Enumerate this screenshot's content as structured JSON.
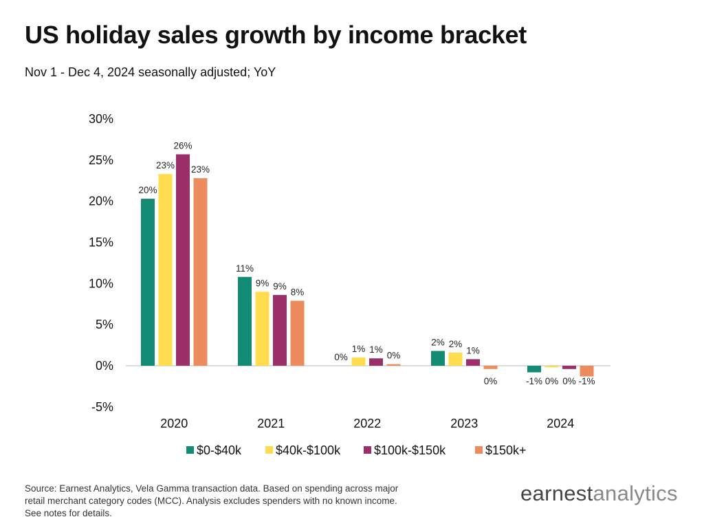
{
  "title": "US holiday sales growth by income bracket",
  "subtitle": "Nov 1 - Dec 4, 2024 seasonally adjusted; YoY",
  "footer": {
    "source": "Source: Earnest Analytics, Vela Gamma transaction data. Based on spending across major retail merchant category codes (MCC). Analysis excludes spenders with no known income. See notes for details."
  },
  "brand": {
    "part1": "earnest",
    "part2": "analytics"
  },
  "chart_data": {
    "type": "bar",
    "categories": [
      "2020",
      "2021",
      "2022",
      "2023",
      "2024"
    ],
    "series": [
      {
        "name": "$0-$40k",
        "color": "#138a74",
        "values": [
          20.3,
          10.8,
          0.0,
          1.8,
          -0.8
        ],
        "labels": [
          "20%",
          "11%",
          "0%",
          "2%",
          "-1%"
        ]
      },
      {
        "name": "$40k-$100k",
        "color": "#ffdd4f",
        "values": [
          23.3,
          9.0,
          1.0,
          1.6,
          -0.2
        ],
        "labels": [
          "23%",
          "9%",
          "1%",
          "2%",
          "0%"
        ]
      },
      {
        "name": "$100k-$150k",
        "color": "#9a2f6a",
        "values": [
          25.7,
          8.6,
          0.9,
          0.8,
          -0.4
        ],
        "labels": [
          "26%",
          "9%",
          "1%",
          "1%",
          "0%"
        ]
      },
      {
        "name": "$150k+",
        "color": "#ec8b5e",
        "values": [
          22.8,
          7.9,
          0.2,
          -0.4,
          -1.3
        ],
        "labels": [
          "23%",
          "8%",
          "0%",
          "0%",
          "-1%"
        ]
      }
    ],
    "yticks": [
      "30%",
      "25%",
      "20%",
      "15%",
      "10%",
      "5%",
      "0%",
      "-5%"
    ],
    "ytick_values": [
      30,
      25,
      20,
      15,
      10,
      5,
      0,
      -5
    ],
    "ylim": [
      -5,
      30
    ],
    "grid": false,
    "legend_position": "bottom"
  }
}
